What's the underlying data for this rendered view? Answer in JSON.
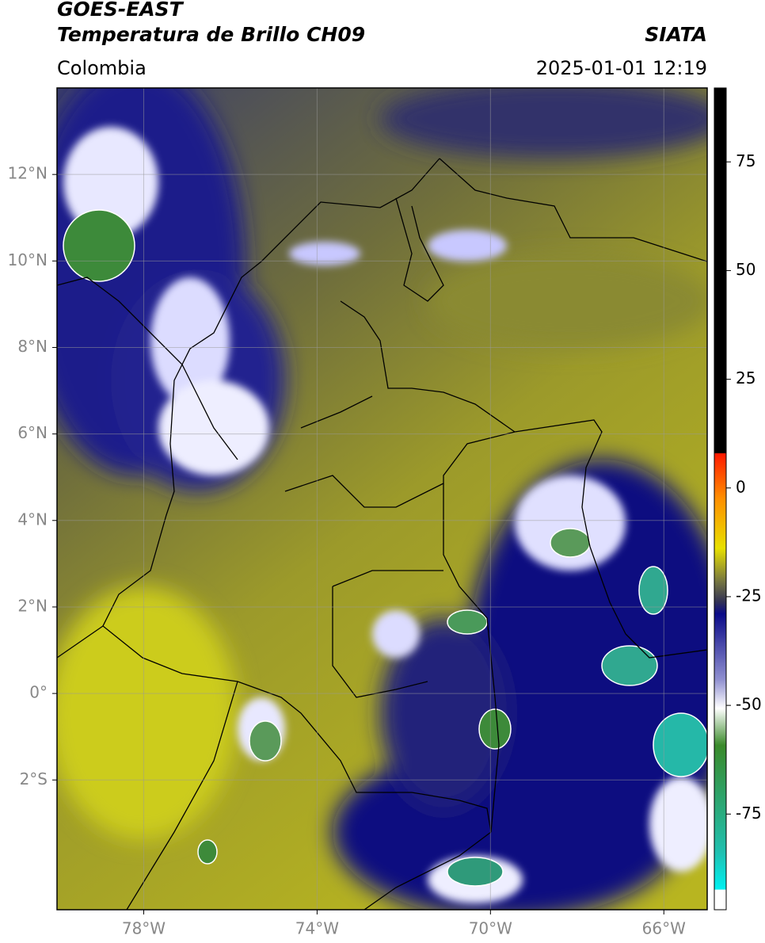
{
  "header": {
    "title": "GOES-EAST",
    "subtitle": "Temperatura de Brillo CH09",
    "source": "SIATA",
    "region": "Colombia",
    "timestamp": "2025-01-01 12:19"
  },
  "map": {
    "xlim": [
      -80,
      -65
    ],
    "ylim": [
      -5,
      14
    ],
    "grid": true,
    "xticks": [
      {
        "value": -78,
        "label": "78°W"
      },
      {
        "value": -74,
        "label": "74°W"
      },
      {
        "value": -70,
        "label": "70°W"
      },
      {
        "value": -66,
        "label": "66°W"
      }
    ],
    "yticks": [
      {
        "value": 12,
        "label": "12°N"
      },
      {
        "value": 10,
        "label": "10°N"
      },
      {
        "value": 8,
        "label": "8°N"
      },
      {
        "value": 6,
        "label": "6°N"
      },
      {
        "value": 4,
        "label": "4°N"
      },
      {
        "value": 2,
        "label": "2°N"
      },
      {
        "value": 0,
        "label": "0°"
      },
      {
        "value": -2,
        "label": "2°S"
      }
    ]
  },
  "colorbar": {
    "lim": [
      -97,
      92
    ],
    "ticks": [
      75,
      50,
      25,
      0,
      -25,
      -50,
      -75
    ]
  }
}
